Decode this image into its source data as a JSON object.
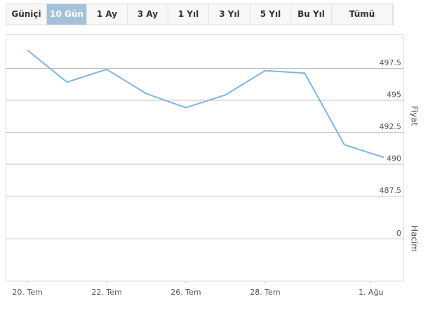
{
  "range_buttons": {
    "labels": [
      "Güniçi",
      "10 Gün",
      "1 Ay",
      "3 Ay",
      "1 Yıl",
      "3 Yıl",
      "5 Yıl",
      "Bu Yıl",
      "Tümü"
    ],
    "selected": 1
  },
  "chart_data": [
    {
      "type": "line",
      "ylabel": "Fiyat",
      "x": [
        0,
        1,
        2,
        3,
        4,
        5,
        6,
        7,
        8,
        9
      ],
      "series": [
        {
          "color": "#7cb5ec",
          "values": [
            498.9,
            496.4,
            497.4,
            495.5,
            494.4,
            495.4,
            497.3,
            497.1,
            491.5,
            490.5
          ]
        }
      ],
      "xlim": [
        -0.55,
        9.49
      ],
      "xticks": [
        {
          "value": 0,
          "label": "20. Tem"
        },
        {
          "value": 2,
          "label": "22. Tem"
        },
        {
          "value": 4,
          "label": "26. Tem"
        },
        {
          "value": 6,
          "label": "28. Tem"
        },
        {
          "value": 8.67,
          "label": "1. Ağu"
        }
      ],
      "ylim": [
        486.35,
        500.08
      ],
      "yticks": [
        487.5,
        490,
        492.5,
        495,
        497.5
      ],
      "grid": true
    },
    {
      "type": "bar",
      "ylabel": "Hacim",
      "ylim": [
        0,
        1
      ],
      "yticks": [
        0
      ],
      "grid": true
    }
  ]
}
